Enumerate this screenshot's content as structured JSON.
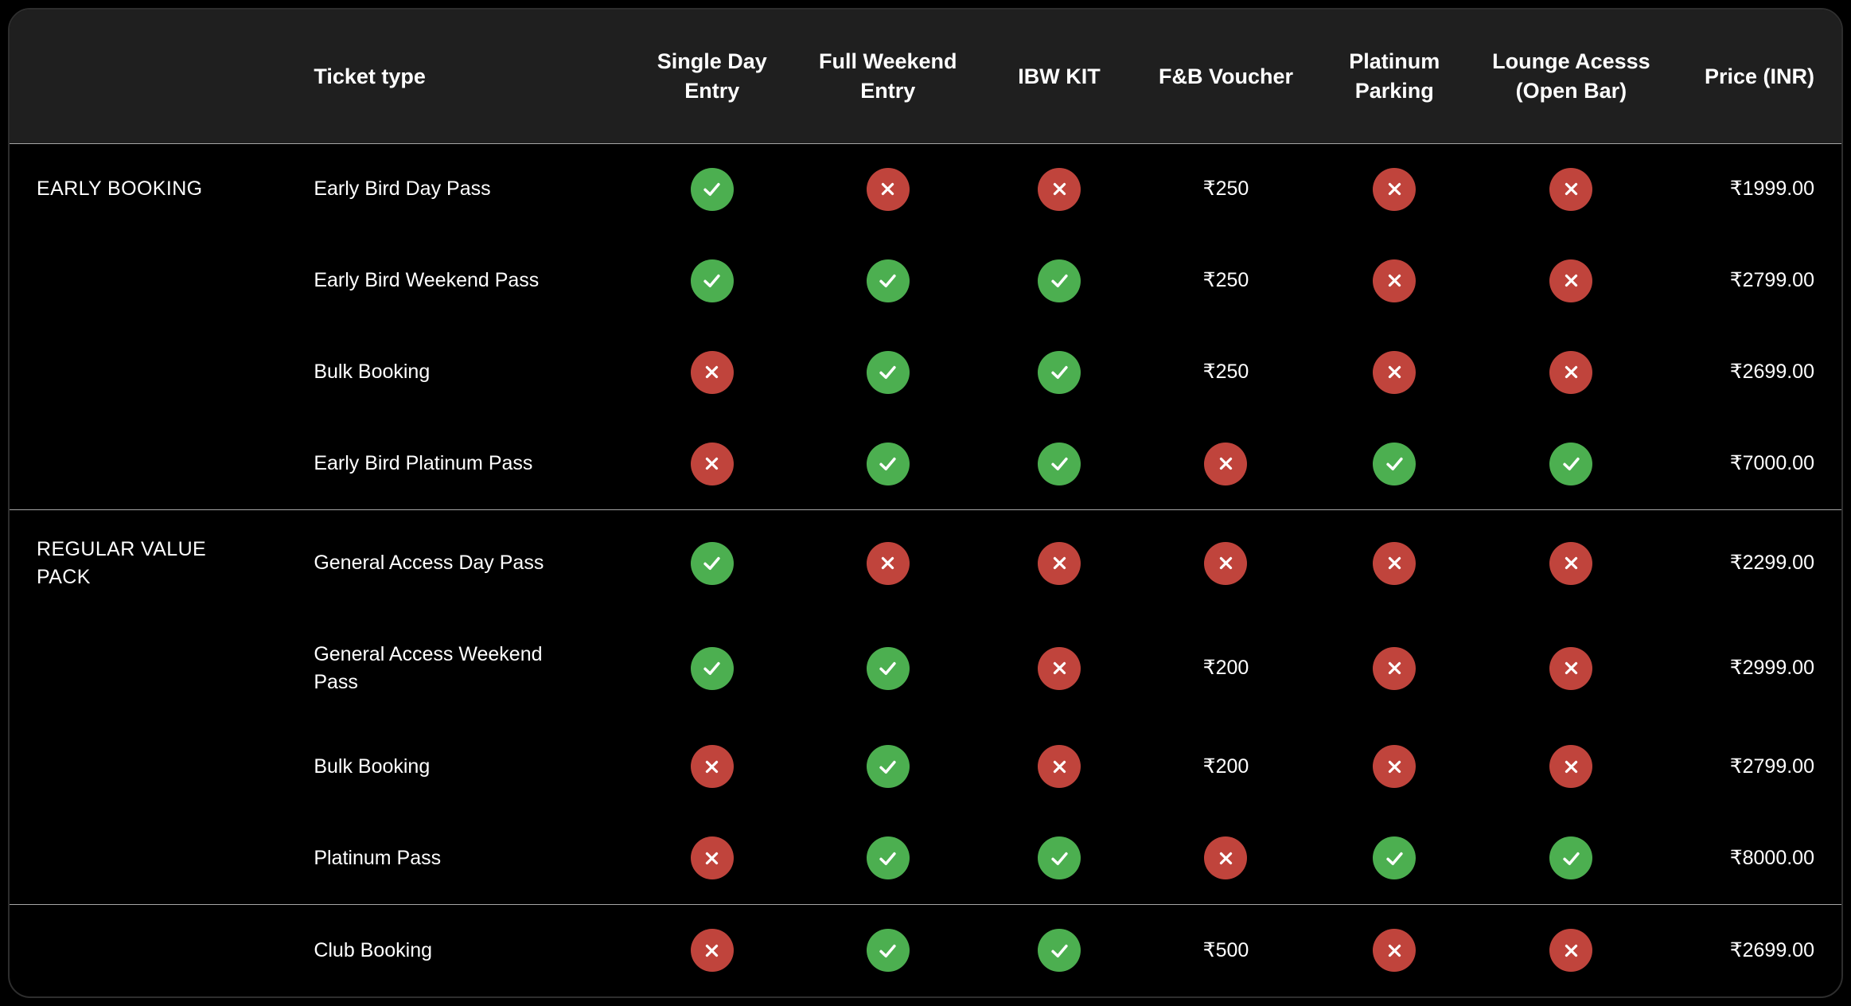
{
  "chart_data": {
    "type": "table",
    "columns": [
      "",
      "Ticket type",
      "Single Day Entry",
      "Full Weekend Entry",
      "IBW KIT",
      "F&B Voucher",
      "Platinum Parking",
      "Lounge Acesss (Open Bar)",
      "Price (INR)"
    ],
    "groups": [
      {
        "label": "EARLY BOOKING",
        "rows": [
          {
            "ticket": "Early Bird Day Pass",
            "features": [
              "yes",
              "no",
              "no",
              "₹250",
              "no",
              "no"
            ],
            "price": "₹1999.00"
          },
          {
            "ticket": "Early Bird Weekend Pass",
            "features": [
              "yes",
              "yes",
              "yes",
              "₹250",
              "no",
              "no"
            ],
            "price": "₹2799.00"
          },
          {
            "ticket": "Bulk Booking",
            "features": [
              "no",
              "yes",
              "yes",
              "₹250",
              "no",
              "no"
            ],
            "price": "₹2699.00"
          },
          {
            "ticket": "Early Bird Platinum Pass",
            "features": [
              "no",
              "yes",
              "yes",
              "no",
              "yes",
              "yes"
            ],
            "price": "₹7000.00"
          }
        ]
      },
      {
        "label": "REGULAR VALUE PACK",
        "rows": [
          {
            "ticket": "General Access Day Pass",
            "features": [
              "yes",
              "no",
              "no",
              "no",
              "no",
              "no"
            ],
            "price": "₹2299.00"
          },
          {
            "ticket": "General Access Weekend Pass",
            "features": [
              "yes",
              "yes",
              "no",
              "₹200",
              "no",
              "no"
            ],
            "price": "₹2999.00"
          },
          {
            "ticket": "Bulk Booking",
            "features": [
              "no",
              "yes",
              "no",
              "₹200",
              "no",
              "no"
            ],
            "price": "₹2799.00"
          },
          {
            "ticket": "Platinum Pass",
            "features": [
              "no",
              "yes",
              "yes",
              "no",
              "yes",
              "yes"
            ],
            "price": "₹8000.00"
          }
        ]
      },
      {
        "label": "",
        "rows": [
          {
            "ticket": "Club Booking",
            "features": [
              "no",
              "yes",
              "yes",
              "₹500",
              "no",
              "no"
            ],
            "price": "₹2699.00"
          }
        ]
      }
    ]
  },
  "icons": {
    "check_icon": "✓",
    "cross_icon": "✕"
  },
  "colors": {
    "included_green": "#4caf50",
    "excluded_red": "#c0443c",
    "header_bg": "#1f1f1f",
    "page_bg": "#000000",
    "text": "#ffffff"
  }
}
